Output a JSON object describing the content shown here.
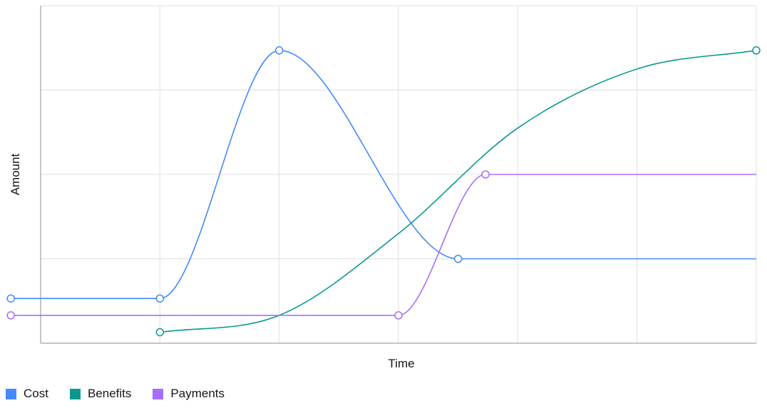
{
  "chart_data": {
    "type": "line",
    "xlabel": "Time",
    "ylabel": "Amount",
    "grid": true,
    "legend_position": "bottom-left",
    "xlim": [
      0,
      6
    ],
    "ylim": [
      0,
      4
    ],
    "series": [
      {
        "name": "Cost",
        "color": "#4589ff",
        "points": [
          [
            -0.25,
            0.53
          ],
          [
            1,
            0.53
          ],
          [
            2,
            3.47
          ],
          [
            3.5,
            1.0
          ],
          [
            6,
            1.0
          ]
        ],
        "markers": [
          [
            -0.25,
            0.53
          ],
          [
            1,
            0.53
          ],
          [
            2,
            3.47
          ],
          [
            3.5,
            1.0
          ]
        ]
      },
      {
        "name": "Benefits",
        "color": "#08998f",
        "points": [
          [
            1,
            0.13
          ],
          [
            2,
            0.33
          ],
          [
            3,
            1.3
          ],
          [
            4,
            2.55
          ],
          [
            5,
            3.25
          ],
          [
            6,
            3.47
          ]
        ],
        "markers": [
          [
            1,
            0.13
          ],
          [
            6,
            3.47
          ]
        ]
      },
      {
        "name": "Payments",
        "color": "#a56eff",
        "points": [
          [
            -0.25,
            0.33
          ],
          [
            3,
            0.33
          ],
          [
            3.73,
            2.0
          ],
          [
            6,
            2.0
          ]
        ],
        "markers": [
          [
            -0.25,
            0.33
          ],
          [
            3,
            0.33
          ],
          [
            3.73,
            2.0
          ]
        ]
      }
    ]
  },
  "legend": {
    "items": [
      {
        "label": "Cost",
        "color": "#4589ff"
      },
      {
        "label": "Benefits",
        "color": "#08998f"
      },
      {
        "label": "Payments",
        "color": "#a56eff"
      }
    ]
  }
}
